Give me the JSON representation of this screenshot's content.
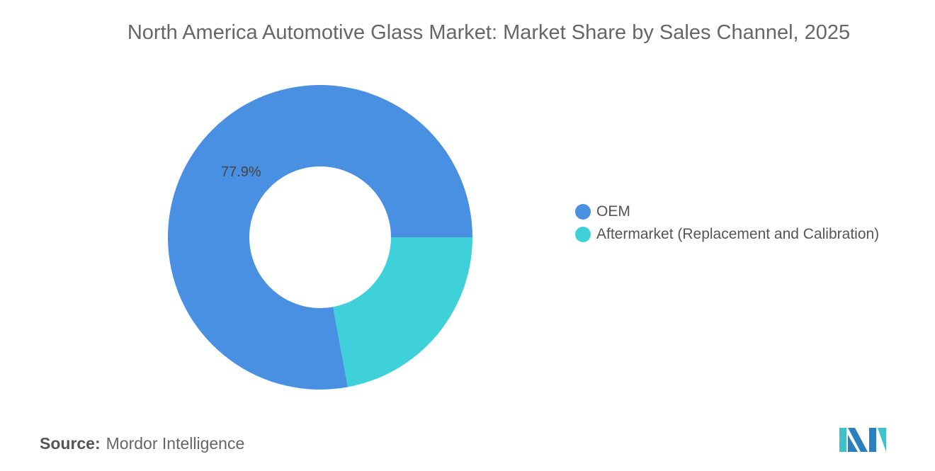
{
  "chart_data": {
    "type": "pie",
    "title": "North America Automotive Glass Market: Market Share by Sales Channel, 2025",
    "series": [
      {
        "name": "OEM",
        "value": 77.9,
        "color": "#4a90e2",
        "label": "77.9%"
      },
      {
        "name": "Aftermarket (Replacement and Calibration)",
        "value": 22.1,
        "color": "#3fd1d9",
        "label": ""
      }
    ],
    "donut": true,
    "legend_position": "right"
  },
  "source": {
    "label": "Source:",
    "value": "Mordor Intelligence"
  }
}
